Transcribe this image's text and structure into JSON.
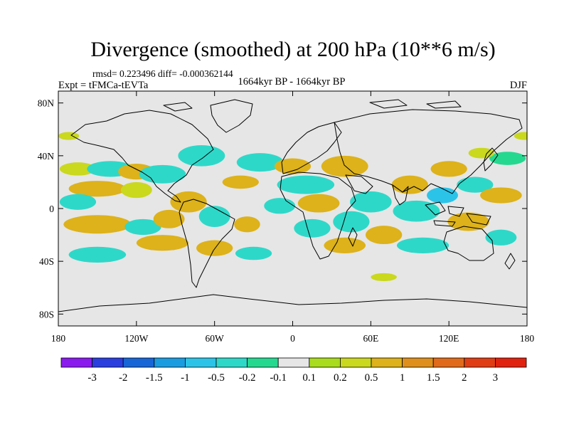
{
  "title": "Divergence (smoothed) at 200 hPa (10**6 m/s)",
  "stats_line": "rmsd= 0.223496  diff= -0.000362144",
  "left_label": "Expt = tFMCa-tEVTa",
  "center_label": "1664kyr BP - 1664kyr BP",
  "right_label": "DJF",
  "map": {
    "projection": "cylindrical-equidistant",
    "background_color": "#e6e6e6",
    "lat_ticks": [
      {
        "label": "80N",
        "lat": 80
      },
      {
        "label": "40N",
        "lat": 40
      },
      {
        "label": "0",
        "lat": 0
      },
      {
        "label": "40S",
        "lat": -40
      },
      {
        "label": "80S",
        "lat": -80
      }
    ],
    "lon_ticks": [
      {
        "label": "180",
        "lon": -180
      },
      {
        "label": "120W",
        "lon": -120
      },
      {
        "label": "60W",
        "lon": -60
      },
      {
        "label": "0",
        "lon": 0
      },
      {
        "label": "60E",
        "lon": 60
      },
      {
        "label": "120E",
        "lon": 120
      },
      {
        "label": "180",
        "lon": 180
      }
    ]
  },
  "colorbar": {
    "colors": [
      "#8b1aef",
      "#2a3ee0",
      "#1766d8",
      "#1a9ce0",
      "#2bc4e8",
      "#2ed8c9",
      "#24d890",
      "#e6e6e6",
      "#a8dc1c",
      "#cad81e",
      "#ddb21a",
      "#de8f1c",
      "#e06a1a",
      "#e03d14",
      "#e0220e"
    ],
    "labels": [
      "-3",
      "-2",
      "-1.5",
      "-1",
      "-0.5",
      "-0.2",
      "-0.1",
      "0.1",
      "0.2",
      "0.5",
      "1",
      "1.5",
      "2",
      "3"
    ]
  },
  "field_blobs": [
    {
      "lon": -165,
      "lat": 30,
      "rx": 14,
      "ry": 5,
      "v": 0.2
    },
    {
      "lon": -140,
      "lat": 30,
      "rx": 18,
      "ry": 6,
      "v": -0.5
    },
    {
      "lon": -120,
      "lat": 28,
      "rx": 14,
      "ry": 6,
      "v": 0.5
    },
    {
      "lon": -100,
      "lat": 26,
      "rx": 18,
      "ry": 7,
      "v": -0.5
    },
    {
      "lon": -150,
      "lat": 15,
      "rx": 22,
      "ry": 6,
      "v": 0.5
    },
    {
      "lon": -120,
      "lat": 14,
      "rx": 12,
      "ry": 6,
      "v": 0.2
    },
    {
      "lon": -165,
      "lat": 5,
      "rx": 14,
      "ry": 6,
      "v": -0.5
    },
    {
      "lon": -80,
      "lat": 5,
      "rx": 14,
      "ry": 8,
      "v": 0.5
    },
    {
      "lon": -150,
      "lat": -12,
      "rx": 26,
      "ry": 7,
      "v": 0.5
    },
    {
      "lon": -115,
      "lat": -14,
      "rx": 14,
      "ry": 6,
      "v": -0.5
    },
    {
      "lon": -95,
      "lat": -8,
      "rx": 12,
      "ry": 7,
      "v": 0.5
    },
    {
      "lon": -60,
      "lat": -6,
      "rx": 12,
      "ry": 8,
      "v": -0.5
    },
    {
      "lon": -35,
      "lat": -12,
      "rx": 10,
      "ry": 6,
      "v": 0.5
    },
    {
      "lon": -150,
      "lat": -35,
      "rx": 22,
      "ry": 6,
      "v": -0.5
    },
    {
      "lon": -100,
      "lat": -26,
      "rx": 20,
      "ry": 6,
      "v": 0.5
    },
    {
      "lon": -60,
      "lat": -30,
      "rx": 14,
      "ry": 6,
      "v": 0.5
    },
    {
      "lon": -30,
      "lat": -34,
      "rx": 14,
      "ry": 5,
      "v": -0.5
    },
    {
      "lon": -70,
      "lat": 40,
      "rx": 18,
      "ry": 8,
      "v": -0.5
    },
    {
      "lon": -25,
      "lat": 35,
      "rx": 18,
      "ry": 7,
      "v": -0.5
    },
    {
      "lon": -40,
      "lat": 20,
      "rx": 14,
      "ry": 5,
      "v": 0.5
    },
    {
      "lon": 10,
      "lat": 18,
      "rx": 22,
      "ry": 7,
      "v": -0.5
    },
    {
      "lon": 0,
      "lat": 32,
      "rx": 14,
      "ry": 6,
      "v": 0.5
    },
    {
      "lon": 40,
      "lat": 32,
      "rx": 18,
      "ry": 8,
      "v": 0.5
    },
    {
      "lon": 20,
      "lat": 4,
      "rx": 16,
      "ry": 7,
      "v": 0.5
    },
    {
      "lon": -10,
      "lat": 2,
      "rx": 12,
      "ry": 6,
      "v": -0.5
    },
    {
      "lon": 15,
      "lat": -15,
      "rx": 14,
      "ry": 7,
      "v": -0.5
    },
    {
      "lon": 45,
      "lat": -10,
      "rx": 14,
      "ry": 8,
      "v": -0.5
    },
    {
      "lon": 40,
      "lat": -28,
      "rx": 16,
      "ry": 6,
      "v": 0.5
    },
    {
      "lon": 70,
      "lat": -20,
      "rx": 14,
      "ry": 7,
      "v": 0.5
    },
    {
      "lon": 60,
      "lat": 5,
      "rx": 16,
      "ry": 8,
      "v": -0.5
    },
    {
      "lon": 90,
      "lat": 18,
      "rx": 14,
      "ry": 7,
      "v": 0.5
    },
    {
      "lon": 95,
      "lat": -2,
      "rx": 18,
      "ry": 8,
      "v": -0.5
    },
    {
      "lon": 120,
      "lat": 30,
      "rx": 14,
      "ry": 6,
      "v": 0.5
    },
    {
      "lon": 140,
      "lat": 18,
      "rx": 14,
      "ry": 6,
      "v": -0.5
    },
    {
      "lon": 115,
      "lat": 10,
      "rx": 12,
      "ry": 6,
      "v": -1.0
    },
    {
      "lon": 160,
      "lat": 10,
      "rx": 16,
      "ry": 6,
      "v": 0.5
    },
    {
      "lon": 135,
      "lat": -10,
      "rx": 16,
      "ry": 7,
      "v": 0.5
    },
    {
      "lon": 100,
      "lat": -28,
      "rx": 20,
      "ry": 6,
      "v": -0.5
    },
    {
      "lon": 160,
      "lat": -22,
      "rx": 12,
      "ry": 6,
      "v": -0.5
    },
    {
      "lon": 165,
      "lat": 38,
      "rx": 14,
      "ry": 5,
      "v": -0.2
    },
    {
      "lon": 145,
      "lat": 42,
      "rx": 10,
      "ry": 4,
      "v": 0.2
    },
    {
      "lon": 178,
      "lat": 55,
      "rx": 8,
      "ry": 3,
      "v": 0.2
    },
    {
      "lon": -172,
      "lat": 55,
      "rx": 8,
      "ry": 3,
      "v": 0.2
    },
    {
      "lon": 70,
      "lat": -52,
      "rx": 10,
      "ry": 3,
      "v": 0.2
    }
  ]
}
